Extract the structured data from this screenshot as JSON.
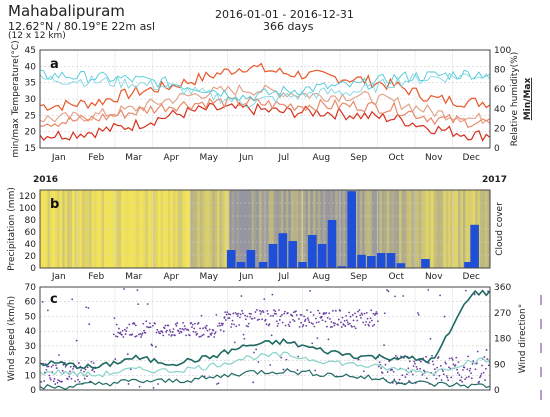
{
  "header": {
    "location": "Mahabalipuram",
    "coords": "12.62°N / 80.19°E 22m asl",
    "grid": "(12 x 12 km)",
    "date_range": "2016-01-01 - 2016-12-31",
    "days": "366 days"
  },
  "colors": {
    "temp_max": "#e8562a",
    "temp_min": "#d6301e",
    "temp_mean": "#e4a48c",
    "temp_mean2": "#e88a6a",
    "humidity": "#4ec9d8",
    "humidity_min": "#7fd6e0",
    "precip": "#1f4fd8",
    "cloud_clear": "#f2e35a",
    "cloud_full": "#b9b9b9",
    "wind_dir": "#6a3fa0",
    "wind_speed": "#1e6a62",
    "wind_mean": "#88d3c6"
  },
  "chart_data": [
    {
      "panel": "a",
      "type": "line",
      "ylabel": "min/max Temperature(°C)",
      "ylabel2": "Relative humidity(%)",
      "ylabel2b": "Min/Max",
      "ylim": [
        15,
        45
      ],
      "yticks": [
        "15",
        "20",
        "25",
        "30",
        "35",
        "40",
        "45"
      ],
      "ylim2": [
        0,
        100
      ],
      "yticks2": [
        "0",
        "20",
        "40",
        "60",
        "80",
        "100"
      ],
      "months": [
        "Jan",
        "Feb",
        "Mar",
        "Apr",
        "May",
        "Jun",
        "Jul",
        "Aug",
        "Sep",
        "Oct",
        "Nov",
        "Dec"
      ],
      "year_start": "2016",
      "year_end": "2017",
      "series": [
        {
          "key": "temp_max",
          "axis": "left",
          "values": [
            28,
            29,
            32,
            34,
            37,
            40,
            38,
            37,
            36,
            34,
            30,
            29
          ]
        },
        {
          "key": "temp_min",
          "axis": "left",
          "values": [
            19,
            20,
            22,
            25,
            27,
            27,
            26,
            26,
            25,
            24,
            21,
            19
          ]
        },
        {
          "key": "temp_mean",
          "axis": "left",
          "values": [
            24,
            25,
            27,
            30,
            32,
            33,
            32,
            31,
            31,
            29,
            26,
            24
          ]
        },
        {
          "key": "temp_mean2",
          "axis": "left",
          "values": [
            23,
            24,
            26,
            28,
            29,
            29,
            28,
            28,
            28,
            27,
            24,
            23
          ]
        },
        {
          "key": "humidity",
          "axis": "right",
          "values": [
            74,
            72,
            70,
            66,
            60,
            52,
            58,
            62,
            64,
            72,
            74,
            76
          ]
        },
        {
          "key": "humidity_min",
          "axis": "right",
          "values": [
            70,
            68,
            66,
            62,
            54,
            46,
            52,
            56,
            58,
            68,
            72,
            74
          ]
        }
      ]
    },
    {
      "panel": "b",
      "type": "bar",
      "ylabel": "Precipitation (mm)",
      "ylabel2": "Cloud cover",
      "ylim": [
        0,
        130
      ],
      "yticks": [
        "0",
        "20",
        "40",
        "60",
        "80",
        "100",
        "120"
      ],
      "months": [
        "Jan",
        "Feb",
        "Mar",
        "Apr",
        "May",
        "Jun",
        "Jul",
        "Aug",
        "Sep",
        "Oct",
        "Nov",
        "Dec"
      ],
      "cloud_cover": [
        0.1,
        0.1,
        0.05,
        0.1,
        0.4,
        0.85,
        0.8,
        0.85,
        0.8,
        0.6,
        0.4,
        0.4
      ],
      "bars": [
        {
          "day": 152,
          "value": 30
        },
        {
          "day": 160,
          "value": 10
        },
        {
          "day": 168,
          "value": 30
        },
        {
          "day": 178,
          "value": 10
        },
        {
          "day": 186,
          "value": 40
        },
        {
          "day": 194,
          "value": 58
        },
        {
          "day": 202,
          "value": 45
        },
        {
          "day": 210,
          "value": 10
        },
        {
          "day": 218,
          "value": 55
        },
        {
          "day": 226,
          "value": 40
        },
        {
          "day": 234,
          "value": 80
        },
        {
          "day": 242,
          "value": 3
        },
        {
          "day": 250,
          "value": 128
        },
        {
          "day": 258,
          "value": 22
        },
        {
          "day": 266,
          "value": 20
        },
        {
          "day": 274,
          "value": 25
        },
        {
          "day": 282,
          "value": 25
        },
        {
          "day": 290,
          "value": 8
        },
        {
          "day": 310,
          "value": 15
        },
        {
          "day": 345,
          "value": 10
        },
        {
          "day": 350,
          "value": 72
        }
      ]
    },
    {
      "panel": "c",
      "type": "scatter",
      "ylabel": "Wind speed (km/h)",
      "ylabel2": "Wind direction°",
      "ylim": [
        0,
        70
      ],
      "yticks": [
        "0",
        "10",
        "20",
        "30",
        "40",
        "50",
        "60",
        "70"
      ],
      "ylim2": [
        0,
        360
      ],
      "yticks2": [
        "0",
        "90",
        "180",
        "270",
        "360"
      ],
      "months": [
        "Jan",
        "Feb",
        "Mar",
        "Apr",
        "May",
        "Jun",
        "Jul",
        "Aug",
        "Sep",
        "Oct",
        "Nov",
        "Dec"
      ],
      "wind_max": [
        18,
        15,
        22,
        18,
        22,
        30,
        33,
        27,
        23,
        22,
        20,
        66
      ],
      "wind_mean": [
        12,
        10,
        14,
        13,
        16,
        22,
        24,
        20,
        17,
        14,
        12,
        20
      ],
      "wind_min": [
        2,
        4,
        6,
        6,
        8,
        12,
        13,
        11,
        9,
        6,
        4,
        3
      ],
      "wind_dir_clusters": [
        {
          "start": 1,
          "end": 45,
          "dir_mean": 60,
          "dir_spread": 40
        },
        {
          "start": 60,
          "end": 150,
          "dir_mean": 210,
          "dir_spread": 25
        },
        {
          "start": 150,
          "end": 275,
          "dir_mean": 250,
          "dir_spread": 30
        },
        {
          "start": 275,
          "end": 366,
          "dir_mean": 70,
          "dir_spread": 50
        }
      ]
    }
  ]
}
